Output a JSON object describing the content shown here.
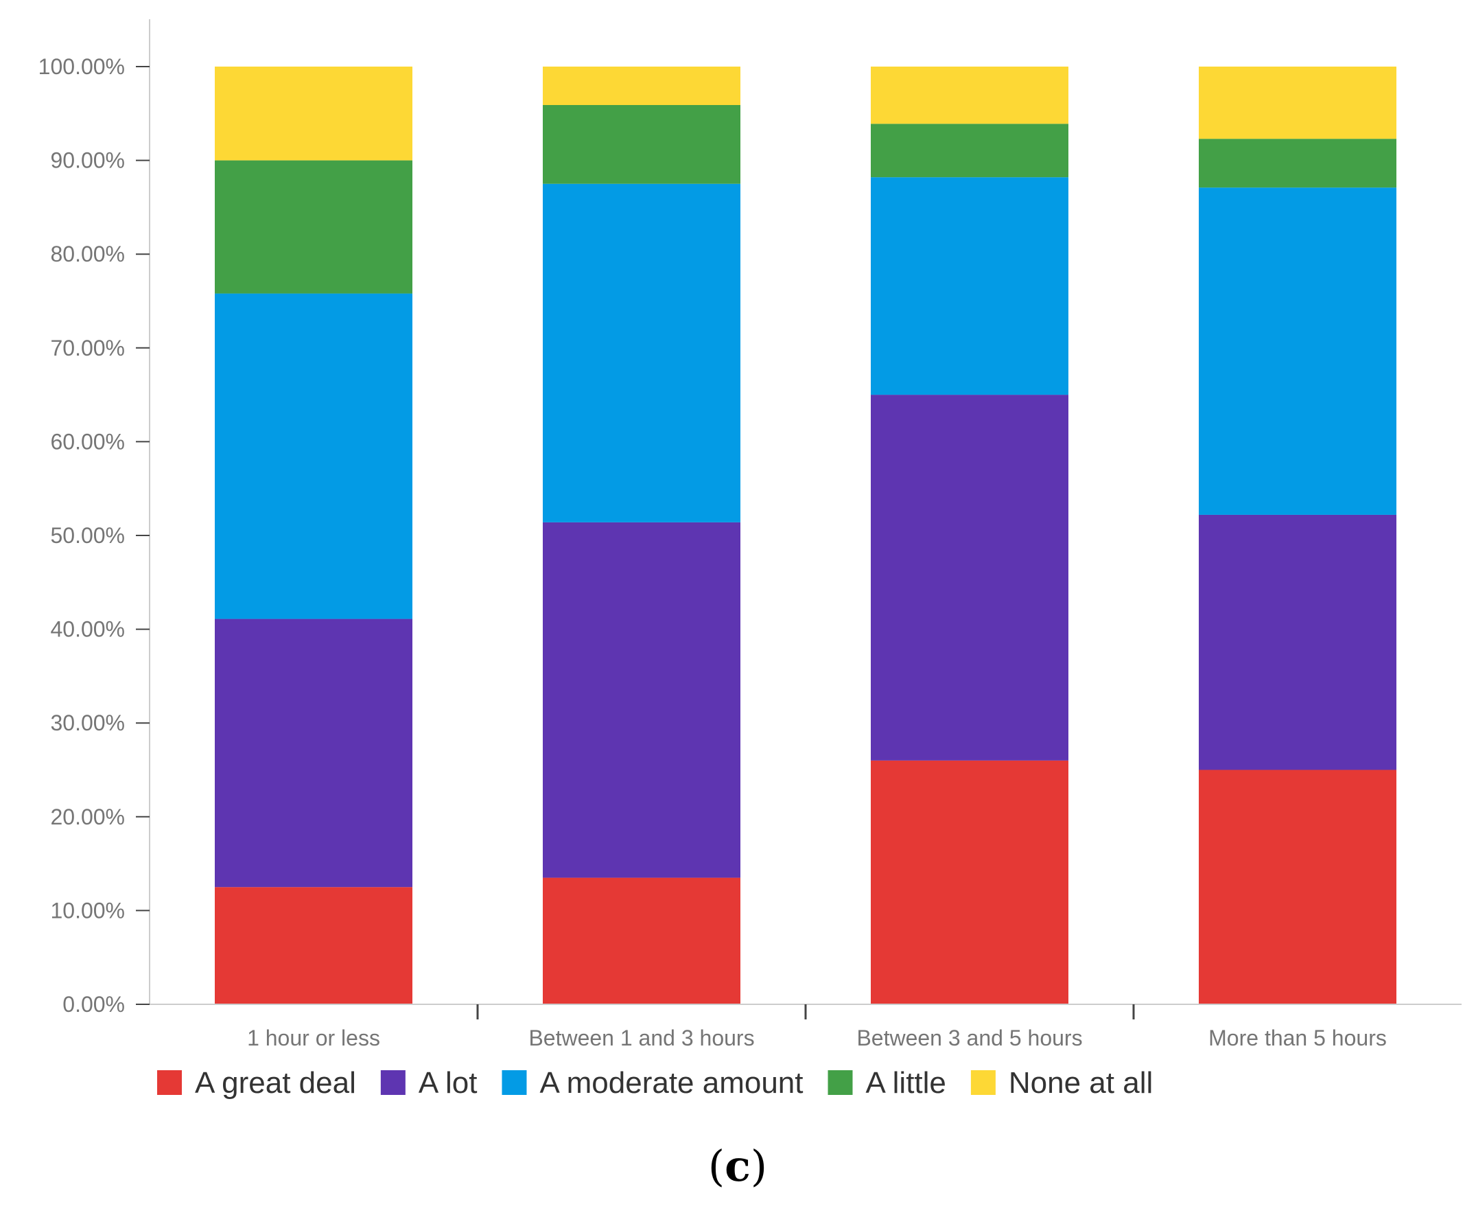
{
  "chart_data": {
    "type": "bar",
    "stacked": true,
    "categories": [
      "1 hour or less",
      "Between 1 and 3 hours",
      "Between 3 and 5 hours",
      "More than 5 hours"
    ],
    "series": [
      {
        "name": "A great deal",
        "color": "#e53935",
        "values": [
          12.5,
          13.5,
          26.0,
          25.0
        ]
      },
      {
        "name": "A lot",
        "color": "#5e35b1",
        "values": [
          28.6,
          37.9,
          39.0,
          27.2
        ]
      },
      {
        "name": "A moderate amount",
        "color": "#039be5",
        "values": [
          34.7,
          36.1,
          23.2,
          34.9
        ]
      },
      {
        "name": "A little",
        "color": "#43a047",
        "values": [
          14.2,
          8.4,
          5.7,
          5.2
        ]
      },
      {
        "name": "None at all",
        "color": "#fdd835",
        "values": [
          10.0,
          4.1,
          6.1,
          7.7
        ]
      }
    ],
    "yticks": [
      "0.00%",
      "10.00%",
      "20.00%",
      "30.00%",
      "40.00%",
      "50.00%",
      "60.00%",
      "70.00%",
      "80.00%",
      "90.00%",
      "100.00%"
    ],
    "ylim": [
      0,
      100
    ],
    "title": "",
    "xlabel": "",
    "ylabel": "",
    "legend_position": "bottom"
  },
  "caption": {
    "open": "(",
    "letter": "c",
    "close": ")"
  }
}
